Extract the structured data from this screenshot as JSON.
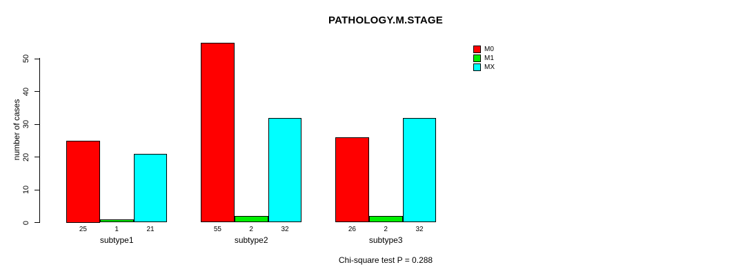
{
  "title": "PATHOLOGY.M.STAGE",
  "footer": "Chi-square test P = 0.288",
  "legend": {
    "entries": [
      {
        "label": "M0",
        "color": "#FF0000"
      },
      {
        "label": "M1",
        "color": "#00EE00"
      },
      {
        "label": "MX",
        "color": "#00FFFF"
      }
    ]
  },
  "chart_data": {
    "type": "bar",
    "grouped": true,
    "title": "PATHOLOGY.M.STAGE",
    "xlabel": "",
    "ylabel": "number of cases",
    "categories": [
      "subtype1",
      "subtype2",
      "subtype3"
    ],
    "series": [
      {
        "name": "M0",
        "color": "#FF0000",
        "values": [
          25,
          55,
          26
        ]
      },
      {
        "name": "M1",
        "color": "#00EE00",
        "values": [
          1,
          2,
          2
        ]
      },
      {
        "name": "MX",
        "color": "#00FFFF",
        "values": [
          21,
          32,
          32
        ]
      }
    ],
    "bar_value_labels_shown": true,
    "yticks": [
      0,
      10,
      20,
      30,
      40,
      50
    ],
    "ylim": [
      0,
      55
    ],
    "grid": false,
    "legend_position": "top-right",
    "bar_border_color": "#000000",
    "background": "#FFFFFF",
    "annotation": "Chi-square test P = 0.288"
  }
}
